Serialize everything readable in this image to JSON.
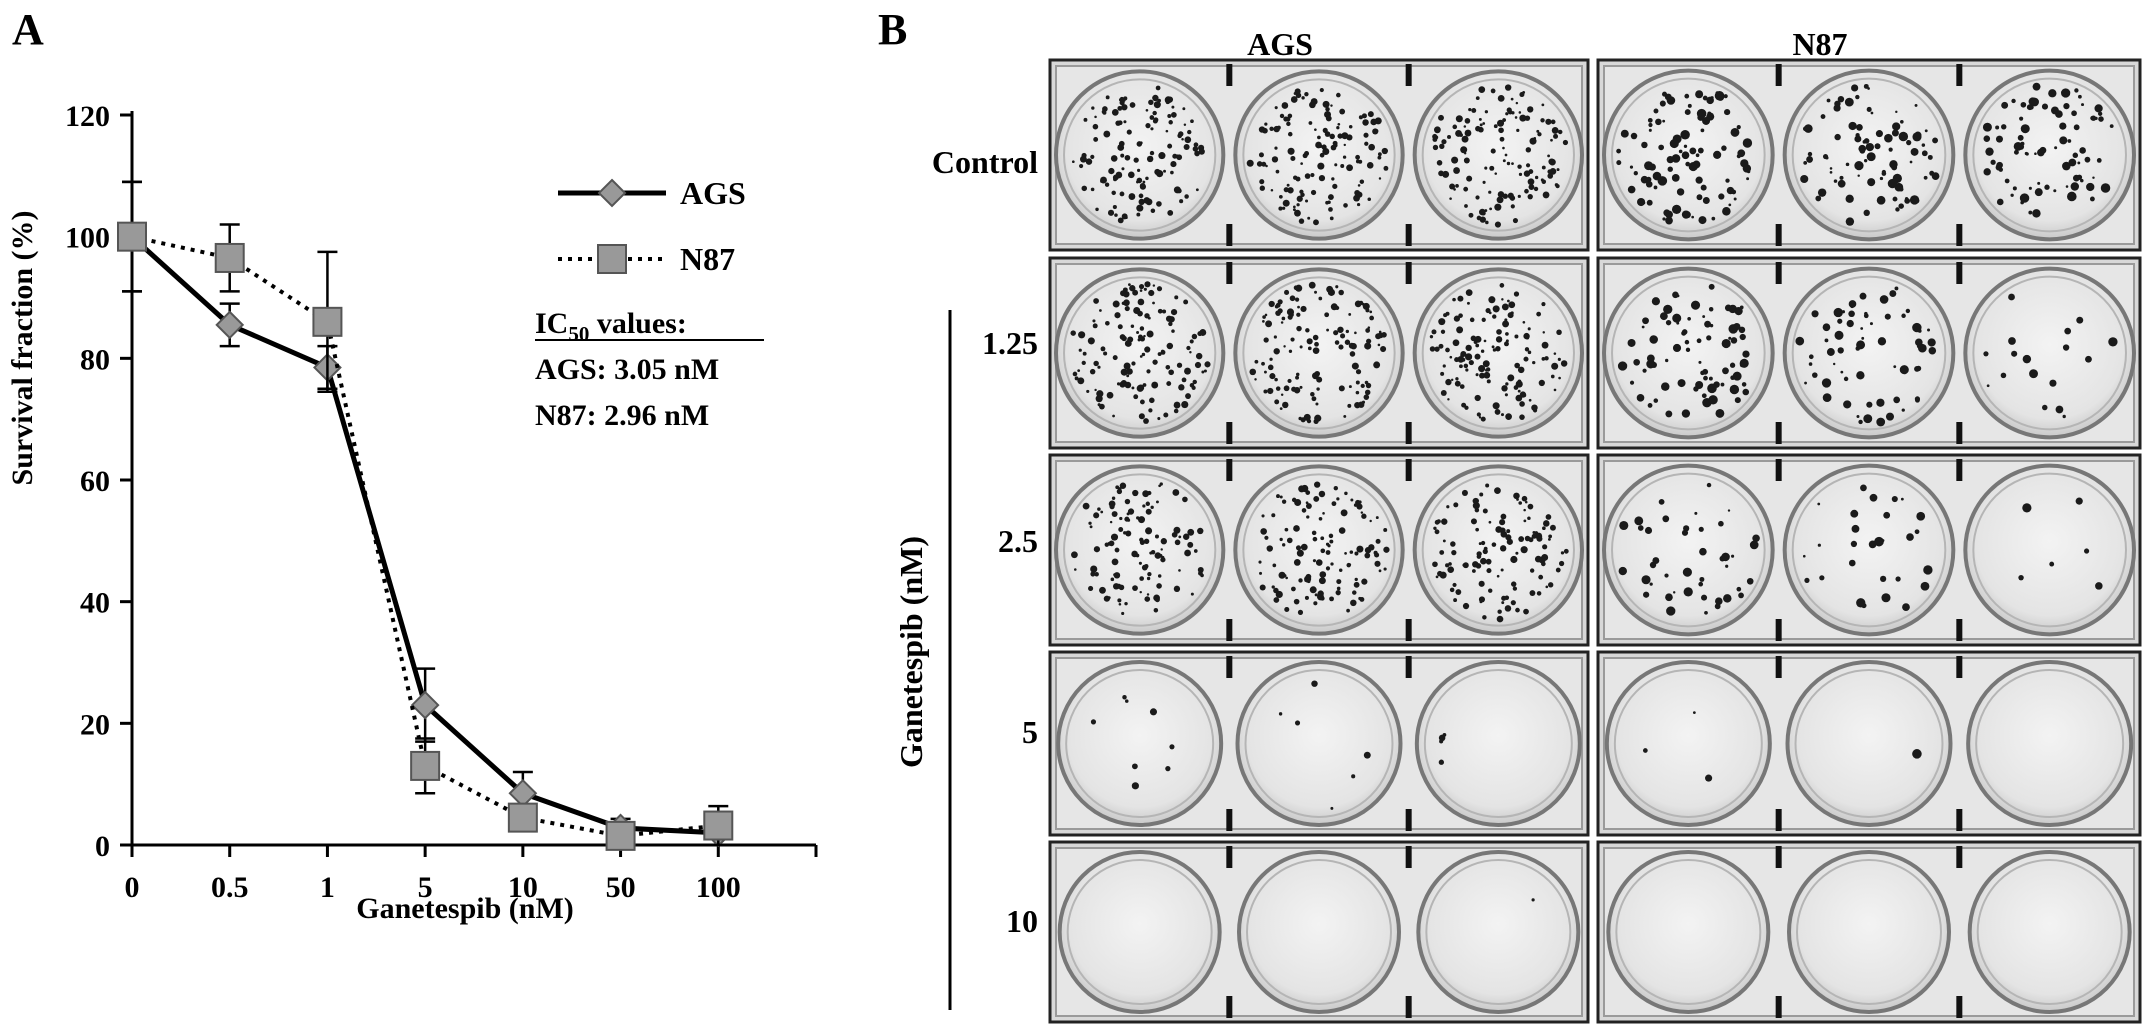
{
  "panel_a": {
    "letter": "A"
  },
  "panel_b": {
    "letter": "B",
    "column_headers": [
      "AGS",
      "N87"
    ],
    "row_labels": [
      "Control",
      "1.25",
      "2.5",
      "5",
      "10"
    ],
    "group_label": "Ganetespib (nM)",
    "colony_density": {
      "AGS": [
        [
          0.9,
          0.95,
          0.95
        ],
        [
          0.95,
          0.95,
          0.95
        ],
        [
          0.8,
          0.85,
          0.85
        ],
        [
          0.06,
          0.04,
          0.03
        ],
        [
          0.0,
          0.0,
          0.01
        ]
      ],
      "N87": [
        [
          0.75,
          0.65,
          0.6
        ],
        [
          0.55,
          0.45,
          0.12
        ],
        [
          0.3,
          0.2,
          0.04
        ],
        [
          0.02,
          0.01,
          0.0
        ],
        [
          0.0,
          0.0,
          0.0
        ]
      ]
    }
  },
  "ic50": {
    "heading_prefix": "IC",
    "heading_subscript": "50",
    "heading_suffix": " values:",
    "lines": [
      "AGS: 3.05 nM",
      "N87: 2.96 nM"
    ]
  },
  "chart_data": {
    "type": "line",
    "title": "",
    "xlabel": "Ganetespib (nM)",
    "ylabel": "Survival fraction (%)",
    "categories": [
      "0",
      "0.5",
      "1",
      "5",
      "10",
      "50",
      "100"
    ],
    "ylim": [
      0,
      120
    ],
    "yticks": [
      0,
      20,
      40,
      60,
      80,
      100,
      120
    ],
    "legend_position": "top-right",
    "series": [
      {
        "name": "AGS",
        "marker": "diamond",
        "line": "solid",
        "color": "#999999",
        "values": [
          100,
          85.5,
          78.5,
          23,
          8.5,
          2.8,
          2
        ],
        "errors": [
          9,
          3.5,
          3.5,
          6,
          3.5,
          1.5,
          0.8
        ]
      },
      {
        "name": "N87",
        "marker": "square",
        "line": "dotted",
        "color": "#999999",
        "values": [
          100,
          96.5,
          86,
          13,
          4.5,
          1.5,
          3.2
        ],
        "errors": [
          9,
          5.5,
          11.5,
          4.5,
          1.5,
          1,
          3.2
        ]
      }
    ]
  }
}
